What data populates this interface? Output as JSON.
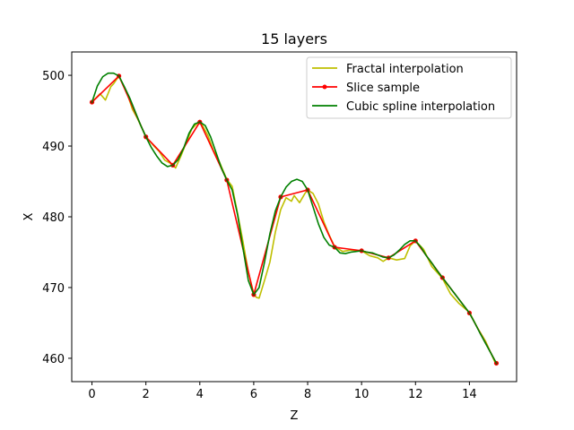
{
  "chart_data": {
    "type": "line",
    "title": "15 layers",
    "xlabel": "Z",
    "ylabel": "X",
    "xlim": [
      -0.75,
      15.75
    ],
    "ylim": [
      456.7,
      503.3
    ],
    "xticks": [
      0,
      2,
      4,
      6,
      8,
      10,
      12,
      14
    ],
    "yticks": [
      460,
      470,
      480,
      490,
      500
    ],
    "grid": false,
    "legend_position": "top-right",
    "series": [
      {
        "name": "Fractal interpolation",
        "color": "#bfbf00",
        "x": [
          0,
          0.3,
          0.5,
          0.7,
          0.8,
          1.0,
          1.3,
          1.5,
          1.7,
          2.0,
          2.3,
          2.5,
          2.7,
          2.9,
          3.0,
          3.1,
          3.3,
          3.5,
          3.7,
          4.0,
          4.3,
          4.5,
          4.7,
          5.0,
          5.2,
          5.4,
          5.6,
          5.8,
          6.0,
          6.1,
          6.2,
          6.4,
          6.6,
          6.8,
          7.0,
          7.2,
          7.4,
          7.5,
          7.7,
          7.9,
          8.0,
          8.2,
          8.4,
          8.6,
          8.8,
          9.0,
          9.3,
          9.6,
          10.0,
          10.3,
          10.6,
          10.8,
          11.0,
          11.3,
          11.6,
          11.8,
          12.0,
          12.3,
          12.6,
          13.0,
          13.3,
          13.6,
          14.0,
          14.3,
          14.6,
          15.0
        ],
        "y": [
          496.2,
          497.4,
          496.5,
          498.4,
          498.8,
          499.9,
          497.5,
          495.2,
          493.8,
          491.3,
          490.0,
          489.2,
          488.0,
          487.6,
          487.3,
          486.9,
          488.6,
          490.5,
          492.4,
          493.6,
          491.5,
          489.4,
          488.0,
          485.3,
          484.3,
          480.5,
          476.5,
          472.2,
          469.1,
          468.6,
          468.5,
          471.0,
          473.6,
          477.8,
          481.0,
          482.7,
          482.2,
          483.0,
          482.0,
          483.3,
          483.8,
          483.3,
          481.8,
          479.3,
          477.4,
          475.8,
          475.1,
          475.3,
          475.2,
          474.5,
          474.2,
          473.7,
          474.2,
          473.9,
          474.1,
          475.9,
          476.6,
          475.4,
          473.0,
          471.3,
          469.1,
          467.8,
          466.5,
          464.3,
          462.4,
          459.0
        ]
      },
      {
        "name": "Slice sample",
        "color": "#ff0000",
        "x": [
          0,
          1,
          2,
          3,
          4,
          5,
          6,
          7,
          8,
          9,
          10,
          11,
          12,
          13,
          14,
          15
        ],
        "y": [
          496.2,
          499.9,
          491.3,
          487.3,
          493.4,
          485.2,
          469.0,
          482.8,
          483.8,
          475.7,
          475.2,
          474.2,
          476.6,
          471.4,
          466.4,
          459.3
        ]
      },
      {
        "name": "Cubic spline interpolation",
        "color": "#008000",
        "x": [
          0,
          0.2,
          0.4,
          0.6,
          0.8,
          1.0,
          1.2,
          1.4,
          1.6,
          1.8,
          2.0,
          2.2,
          2.4,
          2.6,
          2.8,
          3.0,
          3.2,
          3.4,
          3.6,
          3.8,
          4.0,
          4.2,
          4.4,
          4.6,
          4.8,
          5.0,
          5.2,
          5.4,
          5.6,
          5.8,
          6.0,
          6.2,
          6.4,
          6.6,
          6.8,
          7.0,
          7.2,
          7.4,
          7.6,
          7.8,
          8.0,
          8.2,
          8.4,
          8.6,
          8.8,
          9.0,
          9.2,
          9.4,
          9.6,
          9.8,
          10.0,
          10.2,
          10.4,
          10.6,
          10.8,
          11.0,
          11.2,
          11.4,
          11.6,
          11.8,
          12.0,
          12.2,
          12.4,
          12.6,
          12.8,
          13.0,
          13.2,
          13.4,
          13.6,
          13.8,
          14.0,
          14.2,
          14.4,
          14.6,
          14.8,
          15.0
        ],
        "y": [
          496.2,
          498.5,
          499.8,
          500.3,
          500.3,
          499.9,
          498.4,
          496.8,
          494.9,
          493.0,
          491.3,
          489.8,
          488.6,
          487.6,
          487.1,
          487.3,
          488.1,
          489.7,
          491.8,
          493.1,
          493.4,
          492.9,
          491.3,
          489.1,
          486.9,
          485.2,
          483.8,
          480.3,
          475.6,
          471.0,
          469.0,
          470.0,
          473.6,
          477.6,
          480.8,
          482.8,
          484.2,
          485.0,
          485.3,
          485.0,
          483.8,
          481.4,
          479.0,
          477.1,
          476.0,
          475.7,
          474.9,
          474.8,
          475.0,
          475.1,
          475.2,
          475.0,
          474.9,
          474.6,
          474.3,
          474.2,
          474.6,
          475.3,
          476.1,
          476.6,
          476.6,
          475.7,
          474.5,
          473.5,
          472.4,
          471.4,
          470.4,
          469.4,
          468.4,
          467.4,
          466.4,
          465.0,
          463.5,
          462.1,
          460.7,
          459.3
        ]
      }
    ]
  }
}
